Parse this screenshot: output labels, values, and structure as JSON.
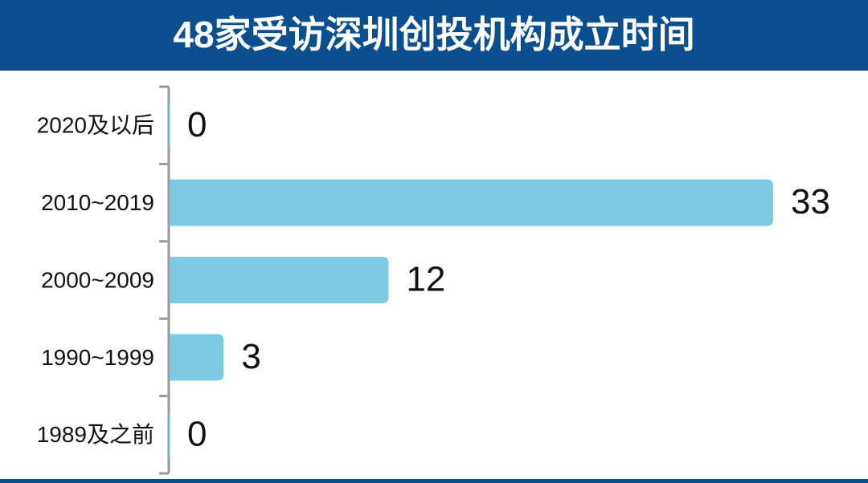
{
  "chart_data": {
    "type": "bar",
    "orientation": "horizontal",
    "title": "48家受访深圳创投机构成立时间",
    "categories": [
      "2020及以后",
      "2010~2019",
      "2000~2009",
      "1990~1999",
      "1989及之前"
    ],
    "values": [
      0,
      33,
      12,
      3,
      0
    ],
    "color": "#7ccadf"
  }
}
